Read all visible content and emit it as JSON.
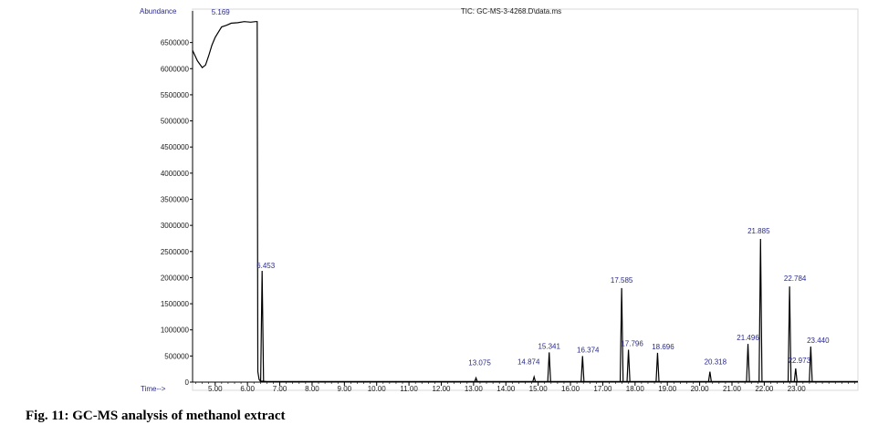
{
  "caption": "Fig. 11: GC-MS analysis of methanol extract",
  "chart_data": {
    "type": "line",
    "title": "TIC: GC-MS-3-4268.D\\data.ms",
    "ylabel": "Abundance",
    "xlabel": "Time-->",
    "xlim": [
      4.3,
      24.9
    ],
    "ylim": [
      0,
      7000000
    ],
    "yticks": [
      0,
      500000,
      1000000,
      1500000,
      2000000,
      2500000,
      3000000,
      3500000,
      4000000,
      4500000,
      5000000,
      5500000,
      6000000,
      6500000
    ],
    "ytick_labels": [
      "0",
      "500000",
      "1000000",
      "1500000",
      "2000000",
      "2500000",
      "3000000",
      "3500000",
      "4000000",
      "4500000",
      "5000000",
      "5500000",
      "6000000",
      "6500000"
    ],
    "xticks": [
      5,
      6,
      7,
      8,
      9,
      10,
      11,
      12,
      13,
      14,
      15,
      16,
      17,
      18,
      19,
      20,
      21,
      22,
      23
    ],
    "xtick_labels": [
      "5.00",
      "6.00",
      "7.00",
      "8.00",
      "9.00",
      "10.00",
      "11.00",
      "12.00",
      "13.00",
      "14.00",
      "15.00",
      "16.00",
      "17.00",
      "18.00",
      "19.00",
      "20.00",
      "21.00",
      "22.00",
      "23.00"
    ],
    "grid": false,
    "line_color": "#000000",
    "label_color": "#2a2a8a",
    "baseline_trace": [
      [
        4.3,
        6350000
      ],
      [
        4.45,
        6150000
      ],
      [
        4.6,
        6020000
      ],
      [
        4.7,
        6070000
      ],
      [
        4.8,
        6250000
      ],
      [
        4.9,
        6450000
      ],
      [
        5.0,
        6600000
      ],
      [
        5.1,
        6700000
      ],
      [
        5.2,
        6800000
      ],
      [
        5.35,
        6830000
      ],
      [
        5.5,
        6870000
      ],
      [
        5.7,
        6880000
      ],
      [
        5.9,
        6900000
      ],
      [
        6.1,
        6890000
      ],
      [
        6.25,
        6900000
      ],
      [
        6.3,
        6900000
      ],
      [
        6.32,
        200000
      ],
      [
        6.36,
        50000
      ],
      [
        6.4,
        20000
      ],
      [
        6.6,
        10000
      ],
      [
        13.0,
        10000
      ],
      [
        24.9,
        10000
      ]
    ],
    "peaks": [
      {
        "rt": 5.169,
        "label": "5.169",
        "height": 6930000
      },
      {
        "rt": 6.453,
        "label": "6.453",
        "height": 2130000
      },
      {
        "rt": 13.075,
        "label": "13.075",
        "height": 80000
      },
      {
        "rt": 14.874,
        "label": "14.874",
        "height": 100000
      },
      {
        "rt": 15.341,
        "label": "15.341",
        "height": 570000
      },
      {
        "rt": 16.374,
        "label": "16.374",
        "height": 500000
      },
      {
        "rt": 17.585,
        "label": "17.585",
        "height": 1800000
      },
      {
        "rt": 17.796,
        "label": "17.796",
        "height": 620000
      },
      {
        "rt": 18.696,
        "label": "18.696",
        "height": 560000
      },
      {
        "rt": 20.318,
        "label": "20.318",
        "height": 200000
      },
      {
        "rt": 21.496,
        "label": "21.496",
        "height": 730000
      },
      {
        "rt": 21.885,
        "label": "21.885",
        "height": 2740000
      },
      {
        "rt": 22.784,
        "label": "22.784",
        "height": 1830000
      },
      {
        "rt": 22.973,
        "label": "22.973",
        "height": 260000
      },
      {
        "rt": 23.44,
        "label": "23.440",
        "height": 680000
      }
    ]
  }
}
